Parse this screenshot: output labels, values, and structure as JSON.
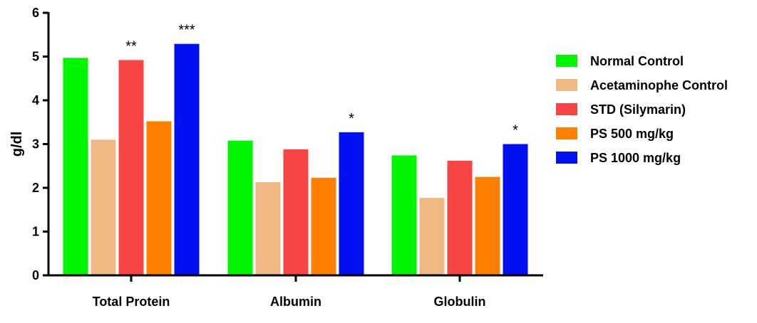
{
  "chart_data": {
    "type": "bar",
    "title": "",
    "xlabel": "",
    "ylabel": "g/dl",
    "ylim": [
      0,
      6
    ],
    "yticks": [
      0,
      1,
      2,
      3,
      4,
      5,
      6
    ],
    "grid": false,
    "legend_position": "right",
    "categories": [
      "Total Protein",
      "Albumin",
      "Globulin"
    ],
    "series": [
      {
        "name": "Normal Control",
        "color": "#00f500",
        "values": [
          4.97,
          3.08,
          2.74
        ],
        "significance": [
          "",
          "",
          ""
        ]
      },
      {
        "name": "Acetaminophe Control",
        "color": "#f0b882",
        "values": [
          3.1,
          2.13,
          1.77
        ],
        "significance": [
          "",
          "",
          ""
        ]
      },
      {
        "name": "STD (Silymarin)",
        "color": "#f84444",
        "values": [
          4.92,
          2.88,
          2.62
        ],
        "significance": [
          "**",
          "",
          ""
        ]
      },
      {
        "name": "PS 500 mg/kg",
        "color": "#ff7f00",
        "values": [
          3.52,
          2.23,
          2.25
        ],
        "significance": [
          "",
          "",
          ""
        ]
      },
      {
        "name": "PS 1000 mg/kg",
        "color": "#0010f0",
        "values": [
          5.29,
          3.27,
          3.0
        ],
        "significance": [
          "***",
          "*",
          "*"
        ]
      }
    ]
  }
}
